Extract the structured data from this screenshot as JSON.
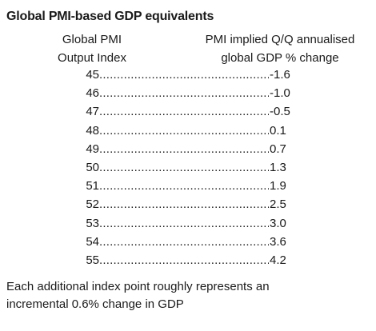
{
  "title": "Global PMI-based GDP equivalents",
  "headers": {
    "left": [
      "Global PMI",
      "Output Index"
    ],
    "right": [
      "PMI implied Q/Q annualised",
      "global GDP % change"
    ]
  },
  "rows": [
    {
      "index": "45",
      "value": "-1.6"
    },
    {
      "index": "46",
      "value": "-1.0"
    },
    {
      "index": "47",
      "value": "-0.5"
    },
    {
      "index": "48",
      "value": "0.1"
    },
    {
      "index": "49",
      "value": "0.7"
    },
    {
      "index": "50",
      "value": "1.3"
    },
    {
      "index": "51",
      "value": "1.9"
    },
    {
      "index": "52",
      "value": "2.5"
    },
    {
      "index": "53",
      "value": "3.0"
    },
    {
      "index": "54",
      "value": "3.6"
    },
    {
      "index": "55",
      "value": "4.2"
    }
  ],
  "footnote": [
    "Each additional index point roughly represents an",
    "incremental 0.6% change in GDP"
  ]
}
